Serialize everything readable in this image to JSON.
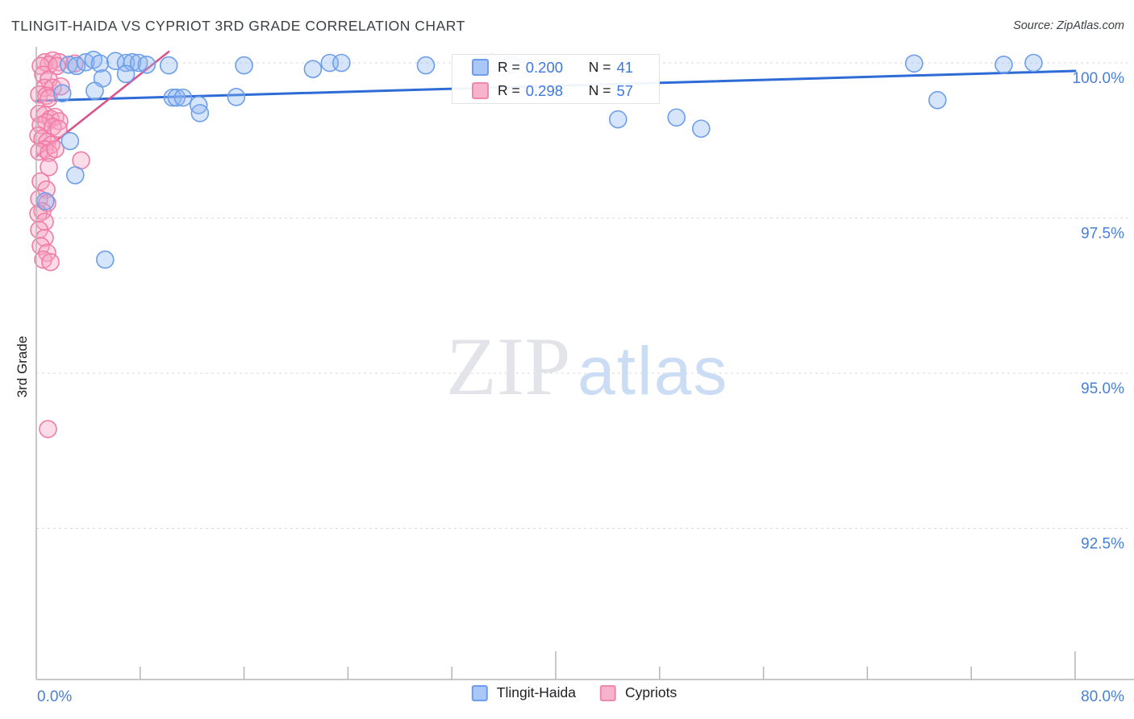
{
  "header": {
    "title": "TLINGIT-HAIDA VS CYPRIOT 3RD GRADE CORRELATION CHART",
    "source": "Source: ZipAtlas.com"
  },
  "y_axis_label": "3rd Grade",
  "watermark": {
    "zip": "ZIP",
    "atlas": "atlas"
  },
  "legend_box": {
    "rows": [
      {
        "series": "Tlingit-Haida",
        "swatch": "blue",
        "r_label": "R =",
        "r_value": "0.200",
        "n_label": "N =",
        "n_value": "41"
      },
      {
        "series": "Cypriots",
        "swatch": "pink",
        "r_label": "R =",
        "r_value": "0.298",
        "n_label": "N =",
        "n_value": "57"
      }
    ]
  },
  "bottom_legend": [
    {
      "label": "Tlingit-Haida",
      "swatch": "blue"
    },
    {
      "label": "Cypriots",
      "swatch": "pink"
    }
  ],
  "axes": {
    "x_left_label": "0.0%",
    "x_right_label": "80.0%",
    "y_tick_labels": [
      "100.0%",
      "97.5%",
      "95.0%",
      "92.5%"
    ]
  },
  "colors": {
    "tick_label_blue": "#4a7fd6",
    "blue_stroke": "#6d9eea",
    "blue_fill": "rgba(141,180,240,0.35)",
    "blue_trend": "#2e6bd6",
    "pink_stroke": "#f07ca4",
    "pink_fill": "rgba(247,163,195,0.38)",
    "pink_trend": "#d9538f",
    "grid": "#d8d8d8",
    "axis": "#b5b5b5",
    "watermark_zip": "#e2e4e9",
    "watermark_atlas": "#cbdcf5",
    "legend_blue_fill": "#a9c7f7",
    "legend_blue_border": "#6d9cf0",
    "legend_pink_fill": "#f7b3cb",
    "legend_pink_border": "#ef87ac"
  },
  "chart_data": {
    "type": "scatter",
    "title": "TLINGIT-HAIDA VS CYPRIOT 3RD GRADE CORRELATION CHART",
    "xlabel": "",
    "ylabel": "3rd Grade",
    "x_range": [
      0,
      80
    ],
    "y_gridline_values": [
      100,
      97.5,
      95,
      92.5
    ],
    "x_minor_ticks": [
      8,
      16,
      24,
      32,
      48,
      56,
      64,
      72
    ],
    "x_major_ticks": [
      40,
      80
    ],
    "grid": "dashed-horizontal",
    "legend_position": "top-center-box",
    "series": [
      {
        "name": "Tlingit-Haida",
        "R": 0.2,
        "N": 41,
        "points": [
          [
            2.5,
            99.97
          ],
          [
            3.1,
            99.95
          ],
          [
            3.8,
            100.01
          ],
          [
            4.4,
            100.05
          ],
          [
            4.9,
            99.99
          ],
          [
            6.1,
            100.03
          ],
          [
            6.9,
            100.0
          ],
          [
            7.4,
            100.01
          ],
          [
            7.9,
            100.0
          ],
          [
            8.5,
            99.97
          ],
          [
            10.2,
            99.96
          ],
          [
            16.0,
            99.96
          ],
          [
            21.3,
            99.9
          ],
          [
            22.6,
            100.0
          ],
          [
            23.5,
            100.0
          ],
          [
            30.0,
            99.96
          ],
          [
            35.1,
            100.0
          ],
          [
            36.6,
            99.97
          ],
          [
            67.6,
            99.99
          ],
          [
            74.5,
            99.97
          ],
          [
            76.8,
            100.0
          ],
          [
            5.1,
            99.75
          ],
          [
            6.9,
            99.82
          ],
          [
            10.5,
            99.44
          ],
          [
            10.8,
            99.44
          ],
          [
            11.3,
            99.44
          ],
          [
            12.5,
            99.32
          ],
          [
            12.6,
            99.19
          ],
          [
            15.4,
            99.45
          ],
          [
            2.0,
            99.51
          ],
          [
            4.5,
            99.55
          ],
          [
            2.6,
            98.74
          ],
          [
            3.0,
            98.19
          ],
          [
            0.7,
            97.77
          ],
          [
            44.8,
            99.09
          ],
          [
            49.3,
            99.12
          ],
          [
            51.2,
            98.94
          ],
          [
            69.4,
            99.4
          ],
          [
            5.3,
            96.83
          ]
        ]
      },
      {
        "name": "Cypriots",
        "R": 0.298,
        "N": 57,
        "points": [
          [
            0.65,
            100.01
          ],
          [
            1.27,
            100.04
          ],
          [
            1.77,
            100.01
          ],
          [
            0.96,
            99.97
          ],
          [
            0.34,
            99.95
          ],
          [
            1.58,
            99.95
          ],
          [
            2.95,
            99.99
          ],
          [
            0.53,
            99.81
          ],
          [
            0.96,
            99.73
          ],
          [
            0.65,
            99.6
          ],
          [
            1.27,
            99.6
          ],
          [
            0.22,
            99.49
          ],
          [
            0.78,
            99.47
          ],
          [
            0.96,
            99.43
          ],
          [
            1.89,
            99.62
          ],
          [
            0.22,
            99.18
          ],
          [
            0.65,
            99.16
          ],
          [
            1.09,
            99.1
          ],
          [
            1.46,
            99.13
          ],
          [
            1.77,
            99.06
          ],
          [
            0.78,
            99.04
          ],
          [
            0.34,
            99.0
          ],
          [
            1.27,
            98.97
          ],
          [
            1.71,
            98.94
          ],
          [
            0.16,
            98.83
          ],
          [
            0.47,
            98.78
          ],
          [
            0.84,
            98.73
          ],
          [
            1.15,
            98.68
          ],
          [
            0.65,
            98.61
          ],
          [
            0.22,
            98.57
          ],
          [
            0.96,
            98.55
          ],
          [
            1.46,
            98.61
          ],
          [
            3.45,
            98.43
          ],
          [
            0.96,
            98.32
          ],
          [
            0.34,
            98.09
          ],
          [
            0.78,
            97.96
          ],
          [
            0.22,
            97.81
          ],
          [
            0.84,
            97.74
          ],
          [
            0.47,
            97.61
          ],
          [
            0.16,
            97.57
          ],
          [
            0.65,
            97.44
          ],
          [
            0.22,
            97.31
          ],
          [
            0.65,
            97.18
          ],
          [
            0.34,
            97.05
          ],
          [
            0.84,
            96.94
          ],
          [
            0.53,
            96.83
          ],
          [
            1.09,
            96.79
          ],
          [
            0.9,
            94.1
          ]
        ]
      }
    ],
    "trend_lines": [
      {
        "series": "Tlingit-Haida",
        "from": [
          0,
          99.39
        ],
        "to": [
          80,
          99.87
        ]
      },
      {
        "series": "Cypriots",
        "from": [
          0,
          98.49
        ],
        "to": [
          10.2,
          100.18
        ]
      }
    ]
  }
}
